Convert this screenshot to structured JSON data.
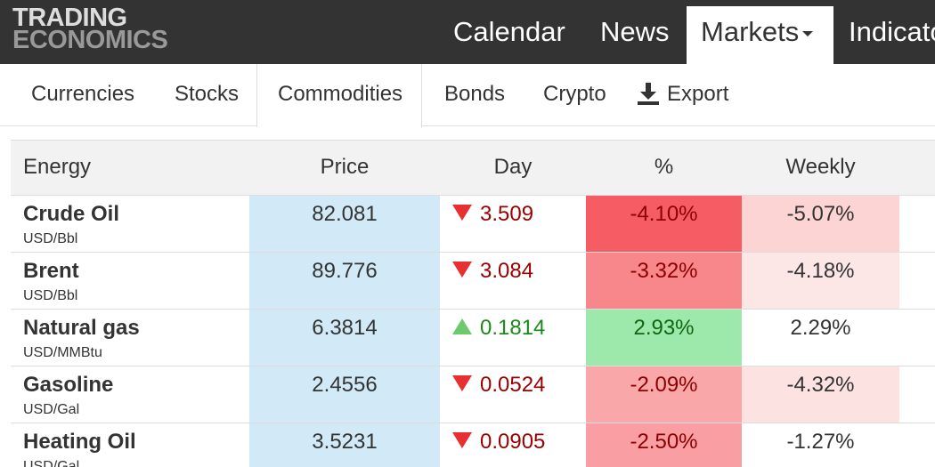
{
  "header": {
    "logo": [
      "TRADING",
      "ECONOMICS"
    ],
    "nav": [
      "Calendar",
      "News",
      "Markets",
      "Indicators"
    ],
    "active_nav": 2
  },
  "subnav": {
    "items": [
      "Currencies",
      "Stocks",
      "Commodities",
      "Bonds",
      "Crypto",
      "Export"
    ],
    "active": 2
  },
  "table": {
    "columns": [
      "Energy",
      "Price",
      "Day",
      "%",
      "Weekly"
    ],
    "rows": [
      {
        "name": "Crude Oil",
        "unit": "USD/Bbl",
        "price": "82.081",
        "direction": "down",
        "day": "3.509",
        "pct": "-4.10%",
        "pct_color": "#f55c64",
        "weekly": "-5.07%",
        "weekly_color": "#fdd4d4"
      },
      {
        "name": "Brent",
        "unit": "USD/Bbl",
        "price": "89.776",
        "direction": "down",
        "day": "3.084",
        "pct": "-3.32%",
        "pct_color": "#f8878b",
        "weekly": "-4.18%",
        "weekly_color": "#fde6e6"
      },
      {
        "name": "Natural gas",
        "unit": "USD/MMBtu",
        "price": "6.3814",
        "direction": "up",
        "day": "0.1814",
        "pct": "2.93%",
        "pct_color": "#9de9ac",
        "weekly": "2.29%",
        "weekly_color": "#ffffff"
      },
      {
        "name": "Gasoline",
        "unit": "USD/Gal",
        "price": "2.4556",
        "direction": "down",
        "day": "0.0524",
        "pct": "-2.09%",
        "pct_color": "#faa7aa",
        "weekly": "-4.32%",
        "weekly_color": "#fde2e2"
      },
      {
        "name": "Heating Oil",
        "unit": "USD/Gal",
        "price": "3.5231",
        "direction": "down",
        "day": "0.0905",
        "pct": "-2.50%",
        "pct_color": "#f99fa3",
        "weekly": "-1.27%",
        "weekly_color": "#ffffff"
      }
    ]
  }
}
